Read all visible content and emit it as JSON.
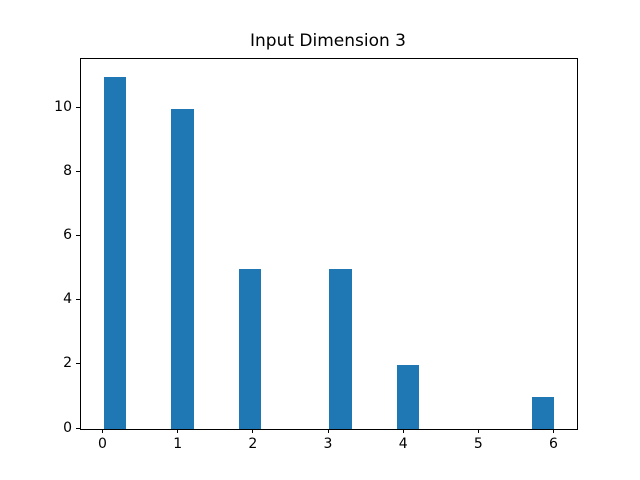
{
  "chart_data": {
    "type": "bar",
    "subtype": "histogram",
    "title": "Input Dimension 3",
    "xlabel": "",
    "ylabel": "",
    "bar_color": "#1f77b4",
    "background_color": "#ffffff",
    "grid": false,
    "legend": null,
    "xlim": [
      -0.3,
      6.3
    ],
    "ylim": [
      0,
      11.55
    ],
    "xticks": [
      0,
      1,
      2,
      3,
      4,
      5,
      6
    ],
    "yticks": [
      0,
      2,
      4,
      6,
      8,
      10
    ],
    "bin_width": 0.3,
    "bars": [
      {
        "bin_start": 0.0,
        "count": 11
      },
      {
        "bin_start": 0.9,
        "count": 10
      },
      {
        "bin_start": 1.8,
        "count": 5
      },
      {
        "bin_start": 3.0,
        "count": 5
      },
      {
        "bin_start": 3.9,
        "count": 2
      },
      {
        "bin_start": 5.7,
        "count": 1
      }
    ]
  }
}
